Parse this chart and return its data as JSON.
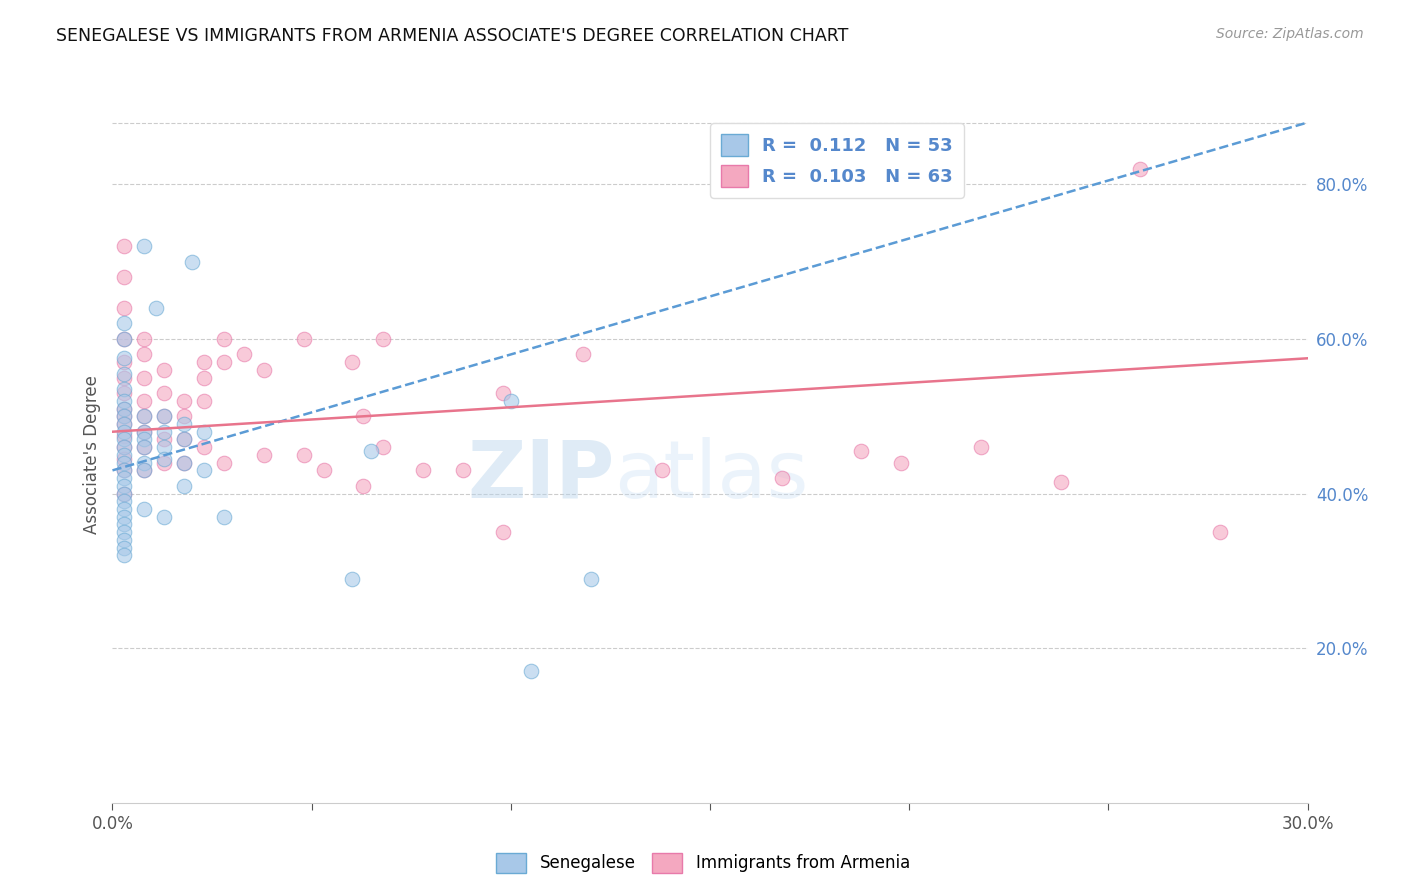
{
  "title": "SENEGALESE VS IMMIGRANTS FROM ARMENIA ASSOCIATE'S DEGREE CORRELATION CHART",
  "source": "Source: ZipAtlas.com",
  "ylabel": "Associate's Degree",
  "xlim": [
    0.0,
    0.3
  ],
  "ylim": [
    0.0,
    0.9
  ],
  "xticks": [
    0.0,
    0.05,
    0.1,
    0.15,
    0.2,
    0.25,
    0.3
  ],
  "xticklabels": [
    "0.0%",
    "",
    "",
    "",
    "",
    "",
    "30.0%"
  ],
  "yticks_right": [
    0.2,
    0.4,
    0.6,
    0.8
  ],
  "ytick_right_labels": [
    "20.0%",
    "40.0%",
    "60.0%",
    "80.0%"
  ],
  "blue_color": "#A8C8E8",
  "pink_color": "#F4A8C0",
  "blue_edge_color": "#6aaad4",
  "pink_edge_color": "#e87aaa",
  "blue_line_color": "#5B9BD5",
  "pink_line_color": "#E8748C",
  "right_axis_color": "#5588CC",
  "legend_R1": "0.112",
  "legend_N1": "53",
  "legend_R2": "0.103",
  "legend_N2": "63",
  "watermark_zip": "ZIP",
  "watermark_atlas": "atlas",
  "blue_trend_x0": 0.0,
  "blue_trend_y0": 0.43,
  "blue_trend_x1": 0.3,
  "blue_trend_y1": 0.88,
  "pink_trend_x0": 0.0,
  "pink_trend_y0": 0.48,
  "pink_trend_x1": 0.3,
  "pink_trend_y1": 0.575,
  "senegalese_x": [
    0.008,
    0.02,
    0.011,
    0.003,
    0.003,
    0.003,
    0.003,
    0.003,
    0.003,
    0.003,
    0.003,
    0.003,
    0.003,
    0.003,
    0.003,
    0.003,
    0.003,
    0.003,
    0.003,
    0.003,
    0.003,
    0.003,
    0.003,
    0.003,
    0.003,
    0.003,
    0.003,
    0.003,
    0.003,
    0.008,
    0.008,
    0.008,
    0.008,
    0.008,
    0.008,
    0.008,
    0.013,
    0.013,
    0.013,
    0.013,
    0.013,
    0.018,
    0.018,
    0.018,
    0.018,
    0.023,
    0.023,
    0.028,
    0.06,
    0.065,
    0.1,
    0.105,
    0.12
  ],
  "senegalese_y": [
    0.72,
    0.7,
    0.64,
    0.62,
    0.6,
    0.575,
    0.555,
    0.535,
    0.52,
    0.51,
    0.5,
    0.49,
    0.48,
    0.47,
    0.46,
    0.45,
    0.44,
    0.43,
    0.42,
    0.41,
    0.4,
    0.39,
    0.38,
    0.37,
    0.36,
    0.35,
    0.34,
    0.33,
    0.32,
    0.5,
    0.48,
    0.47,
    0.46,
    0.44,
    0.43,
    0.38,
    0.5,
    0.48,
    0.46,
    0.445,
    0.37,
    0.49,
    0.47,
    0.44,
    0.41,
    0.48,
    0.43,
    0.37,
    0.29,
    0.455,
    0.52,
    0.17,
    0.29
  ],
  "armenia_x": [
    0.003,
    0.003,
    0.003,
    0.003,
    0.003,
    0.003,
    0.003,
    0.003,
    0.003,
    0.003,
    0.003,
    0.003,
    0.003,
    0.003,
    0.003,
    0.008,
    0.008,
    0.008,
    0.008,
    0.008,
    0.008,
    0.008,
    0.008,
    0.013,
    0.013,
    0.013,
    0.013,
    0.013,
    0.018,
    0.018,
    0.018,
    0.018,
    0.023,
    0.023,
    0.023,
    0.023,
    0.028,
    0.028,
    0.028,
    0.033,
    0.038,
    0.038,
    0.048,
    0.048,
    0.053,
    0.06,
    0.063,
    0.063,
    0.068,
    0.068,
    0.078,
    0.088,
    0.098,
    0.098,
    0.118,
    0.138,
    0.168,
    0.188,
    0.198,
    0.218,
    0.238,
    0.258,
    0.278
  ],
  "armenia_y": [
    0.72,
    0.68,
    0.64,
    0.6,
    0.57,
    0.55,
    0.53,
    0.51,
    0.5,
    0.49,
    0.475,
    0.46,
    0.445,
    0.43,
    0.4,
    0.6,
    0.58,
    0.55,
    0.52,
    0.5,
    0.48,
    0.46,
    0.43,
    0.56,
    0.53,
    0.5,
    0.47,
    0.44,
    0.52,
    0.5,
    0.47,
    0.44,
    0.57,
    0.55,
    0.52,
    0.46,
    0.6,
    0.57,
    0.44,
    0.58,
    0.56,
    0.45,
    0.6,
    0.45,
    0.43,
    0.57,
    0.5,
    0.41,
    0.6,
    0.46,
    0.43,
    0.43,
    0.53,
    0.35,
    0.58,
    0.43,
    0.42,
    0.455,
    0.44,
    0.46,
    0.415,
    0.82,
    0.35
  ]
}
